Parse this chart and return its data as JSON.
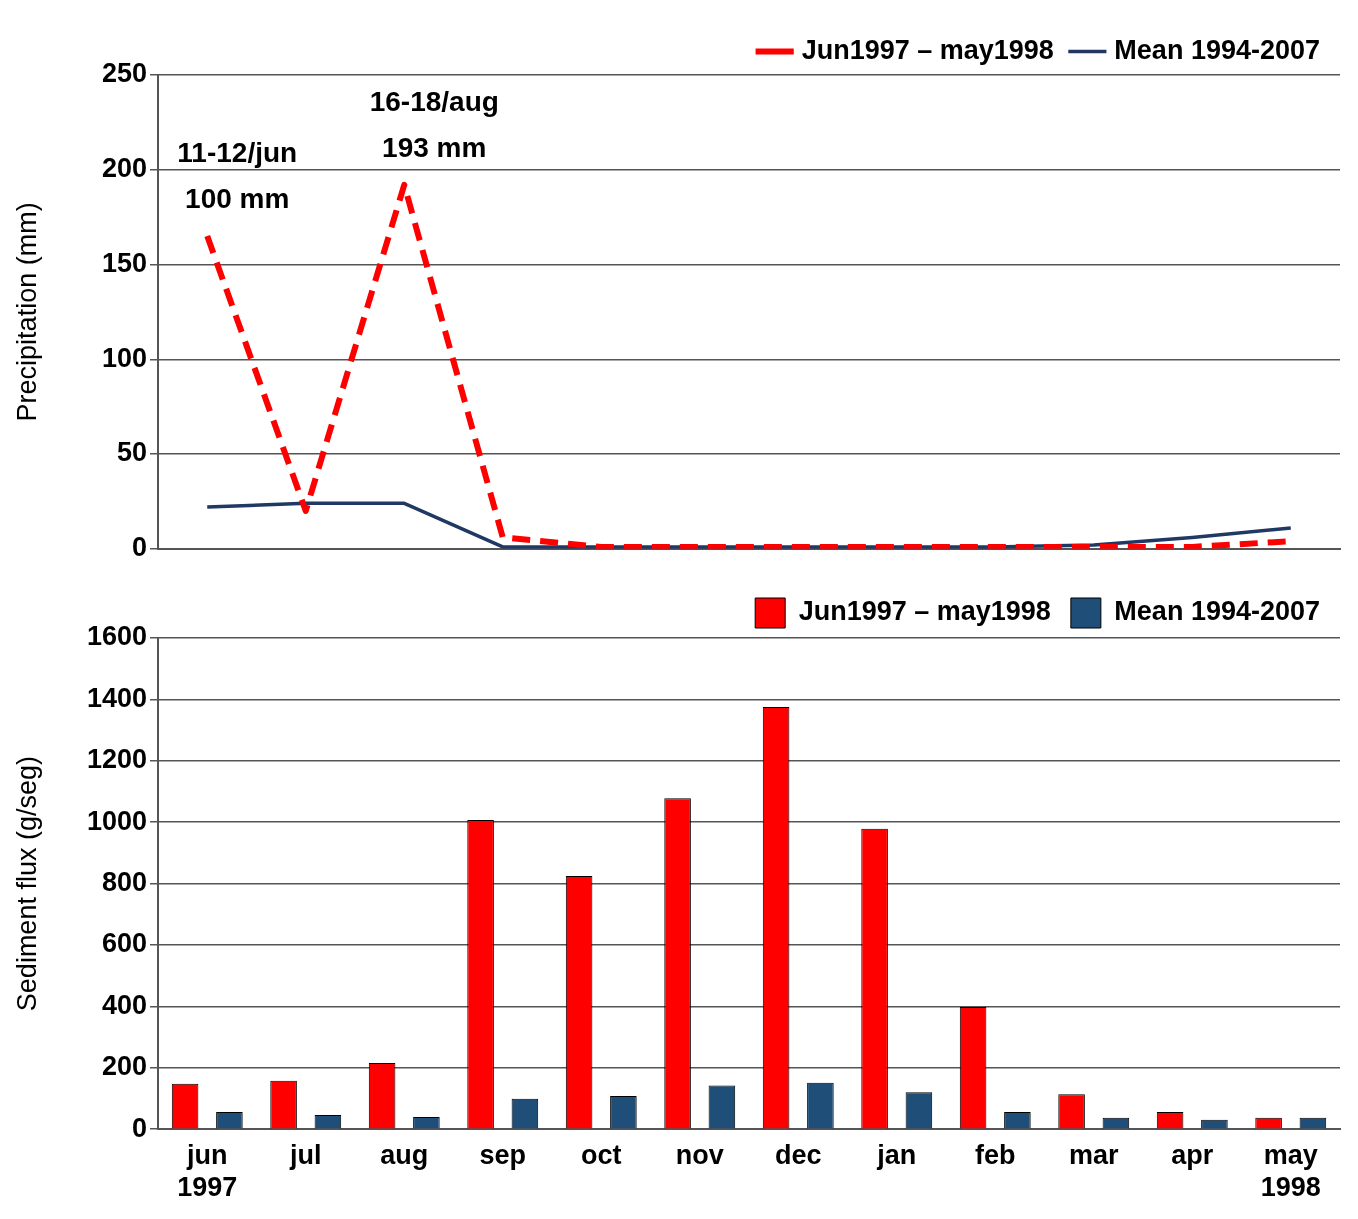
{
  "chart_data": [
    {
      "type": "line",
      "ylabel": "Precipitation (mm)",
      "categories": [
        null,
        null,
        null,
        null,
        null,
        null,
        null,
        null,
        null,
        null,
        null,
        null
      ],
      "ylim": [
        0,
        250
      ],
      "yticks": [
        0,
        50,
        100,
        150,
        200,
        250
      ],
      "grid": "y",
      "legend": "top right",
      "tick_labels": "y",
      "marker": "none",
      "series": [
        {
          "name": "Jun1997 – may1998",
          "color": "#ff0000",
          "line_style": "dashed",
          "values": [
            165,
            20,
            192,
            6,
            1,
            1,
            1,
            1,
            1,
            1,
            1,
            4
          ]
        },
        {
          "name": "Mean 1994-2007",
          "color": "#1f3864",
          "line_style": "solid",
          "values": [
            22,
            24,
            24,
            1,
            1,
            1,
            1,
            1,
            1,
            2,
            6,
            11
          ]
        }
      ],
      "annotations": [
        "11-12/jun\n100 mm",
        "16-18/aug\n193 mm"
      ]
    },
    {
      "type": "bar",
      "ylabel": "Sediment flux (g/seg)",
      "categories": [
        "jun\n1997",
        "jul",
        "aug",
        "sep",
        "oct",
        "nov",
        "dec",
        "jan",
        "feb",
        "mar",
        "apr",
        "may\n1998"
      ],
      "ylim": [
        0,
        1600
      ],
      "yticks": [
        0,
        200,
        400,
        600,
        800,
        1000,
        1200,
        1400,
        1600
      ],
      "grid": "y",
      "legend": "top right",
      "series": [
        {
          "name": "Jun1997 – may1998",
          "color": "#ff0000",
          "values": [
            148,
            158,
            216,
            1007,
            825,
            1078,
            1375,
            979,
            398,
            114,
            56,
            37
          ]
        },
        {
          "name": "Mean 1994-2007",
          "color": "#1f4e79",
          "values": [
            56,
            46,
            40,
            99,
            108,
            142,
            151,
            120,
            56,
            37,
            31,
            37
          ]
        }
      ]
    }
  ]
}
